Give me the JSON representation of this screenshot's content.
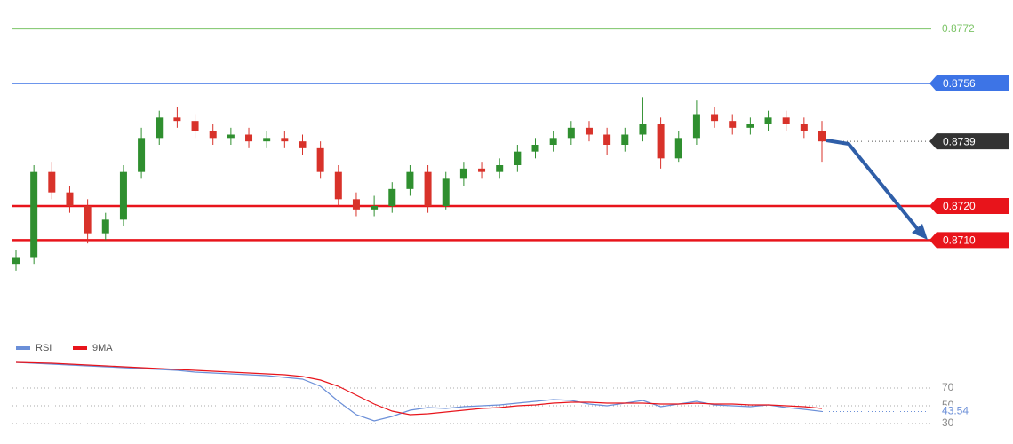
{
  "chart_data": [
    {
      "type": "candlestick",
      "ylim": [
        0.8684,
        0.878
      ],
      "up_color": "#2f8f2f",
      "down_color": "#d8322a",
      "open": [
        0.8703,
        0.8705,
        0.873,
        0.8724,
        0.872,
        0.8712,
        0.8716,
        0.873,
        0.874,
        0.8746,
        0.8745,
        0.8742,
        0.874,
        0.8741,
        0.8739,
        0.874,
        0.8739,
        0.8737,
        0.873,
        0.8722,
        0.8719,
        0.872,
        0.8725,
        0.873,
        0.872,
        0.8728,
        0.8731,
        0.873,
        0.8732,
        0.8736,
        0.8738,
        0.874,
        0.8743,
        0.8741,
        0.8738,
        0.8741,
        0.8744,
        0.8734,
        0.874,
        0.8747,
        0.8745,
        0.8743,
        0.8744,
        0.8746,
        0.8744,
        0.8742
      ],
      "high": [
        0.8707,
        0.8732,
        0.8733,
        0.8726,
        0.8722,
        0.8718,
        0.8732,
        0.8743,
        0.8748,
        0.8749,
        0.8747,
        0.8744,
        0.8743,
        0.8743,
        0.8742,
        0.8742,
        0.8741,
        0.8739,
        0.8732,
        0.8724,
        0.8723,
        0.8727,
        0.8732,
        0.8732,
        0.873,
        0.8733,
        0.8733,
        0.8734,
        0.8738,
        0.874,
        0.8742,
        0.8745,
        0.8745,
        0.8743,
        0.8743,
        0.8752,
        0.8746,
        0.8742,
        0.8751,
        0.8749,
        0.8747,
        0.8746,
        0.8748,
        0.8748,
        0.8746,
        0.8745
      ],
      "low": [
        0.8701,
        0.8703,
        0.8722,
        0.8718,
        0.8709,
        0.871,
        0.8714,
        0.8728,
        0.8738,
        0.8743,
        0.874,
        0.8738,
        0.8738,
        0.8737,
        0.8737,
        0.8737,
        0.8735,
        0.8728,
        0.872,
        0.8717,
        0.8717,
        0.8718,
        0.8723,
        0.8718,
        0.8719,
        0.8726,
        0.8728,
        0.8728,
        0.873,
        0.8734,
        0.8736,
        0.8738,
        0.8739,
        0.8735,
        0.8736,
        0.8739,
        0.8731,
        0.8733,
        0.8738,
        0.8743,
        0.8741,
        0.8741,
        0.8742,
        0.8742,
        0.874,
        0.8733
      ],
      "close": [
        0.8705,
        0.873,
        0.8724,
        0.872,
        0.8712,
        0.8716,
        0.873,
        0.874,
        0.8746,
        0.8745,
        0.8742,
        0.874,
        0.8741,
        0.8739,
        0.874,
        0.8739,
        0.8737,
        0.873,
        0.8722,
        0.8719,
        0.872,
        0.8725,
        0.873,
        0.872,
        0.8728,
        0.8731,
        0.873,
        0.8732,
        0.8736,
        0.8738,
        0.874,
        0.8743,
        0.8741,
        0.8738,
        0.8741,
        0.8744,
        0.8734,
        0.874,
        0.8747,
        0.8745,
        0.8743,
        0.8744,
        0.8746,
        0.8744,
        0.8742,
        0.8739
      ],
      "levels": [
        {
          "value": 0.8772,
          "color": "#7cc467",
          "style": "plain"
        },
        {
          "value": 0.8756,
          "color": "#3d74e6",
          "style": "badge"
        },
        {
          "value": 0.8739,
          "color": "#333333",
          "style": "dotted"
        },
        {
          "value": 0.872,
          "label": "0.8720",
          "color": "#e8141b",
          "style": "badge"
        },
        {
          "value": 0.871,
          "label": "0.8710",
          "color": "#e8141b",
          "style": "badge"
        }
      ]
    },
    {
      "type": "line",
      "ylim": [
        25,
        100
      ],
      "yticks": [
        30,
        50,
        70
      ],
      "last_value": 43.54,
      "series": [
        {
          "name": "RSI",
          "color": "#6b8fd8",
          "values": [
            99,
            98,
            97,
            96,
            95,
            94,
            93,
            92,
            91,
            90,
            88,
            87,
            86,
            85,
            84,
            82,
            80,
            72,
            55,
            40,
            33,
            38,
            45,
            48,
            47,
            49,
            50,
            51,
            53,
            55,
            57,
            56,
            52,
            50,
            53,
            56,
            49,
            52,
            55,
            51,
            50,
            49,
            51,
            48,
            46,
            43.54
          ]
        },
        {
          "name": "9MA",
          "color": "#e8141b",
          "values": [
            99,
            98.5,
            98,
            97,
            96,
            95,
            94,
            93,
            92,
            91,
            90,
            89,
            88,
            87,
            86,
            85,
            83,
            79,
            72,
            62,
            52,
            44,
            40,
            41,
            43,
            45,
            47,
            48,
            50,
            51,
            53,
            54,
            54,
            53,
            53,
            53,
            52,
            52,
            53,
            52,
            52,
            51,
            51,
            50,
            49,
            47
          ]
        }
      ]
    }
  ]
}
